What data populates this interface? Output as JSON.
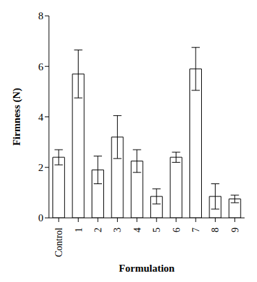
{
  "chart_data": {
    "type": "bar",
    "x_label": "Formulation",
    "y_label": "Firmness (N)",
    "categories": [
      "Control",
      "1",
      "2",
      "3",
      "4",
      "5",
      "6",
      "7",
      "8",
      "9"
    ],
    "values": [
      2.4,
      5.7,
      1.9,
      3.2,
      2.25,
      0.85,
      2.4,
      5.9,
      0.85,
      0.75
    ],
    "errors": [
      0.3,
      0.95,
      0.55,
      0.85,
      0.45,
      0.3,
      0.2,
      0.85,
      0.5,
      0.15
    ],
    "color": "#ffffff",
    "ylim": [
      0,
      8
    ],
    "yticks": [
      0,
      2,
      4,
      6,
      8
    ],
    "grid": false
  }
}
